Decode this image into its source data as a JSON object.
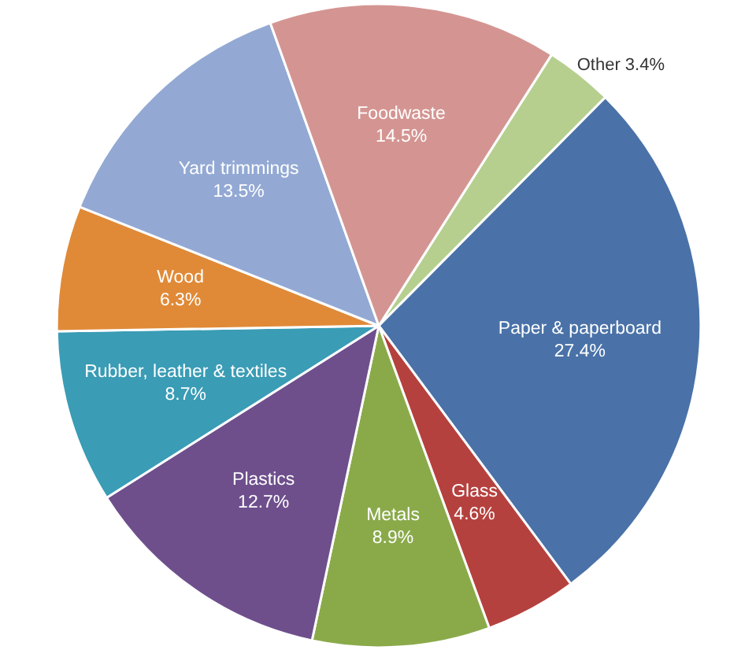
{
  "chart_data": {
    "type": "pie",
    "categories": [
      "Other",
      "Paper & paperboard",
      "Glass",
      "Metals",
      "Plastics",
      "Rubber, leather & textiles",
      "Wood",
      "Yard trimmings",
      "Foodwaste"
    ],
    "values": [
      3.4,
      27.4,
      4.6,
      8.9,
      12.7,
      8.7,
      6.3,
      13.5,
      14.5
    ],
    "value_labels": [
      "3.4%",
      "27.4%",
      "4.6%",
      "8.9%",
      "12.7%",
      "8.7%",
      "6.3%",
      "13.5%",
      "14.5%"
    ],
    "colors": [
      "#b6cf8f",
      "#4a72a8",
      "#b5413e",
      "#8aaa4a",
      "#6e4f8c",
      "#3a9cb5",
      "#e08a38",
      "#93a9d4",
      "#d49592"
    ]
  }
}
